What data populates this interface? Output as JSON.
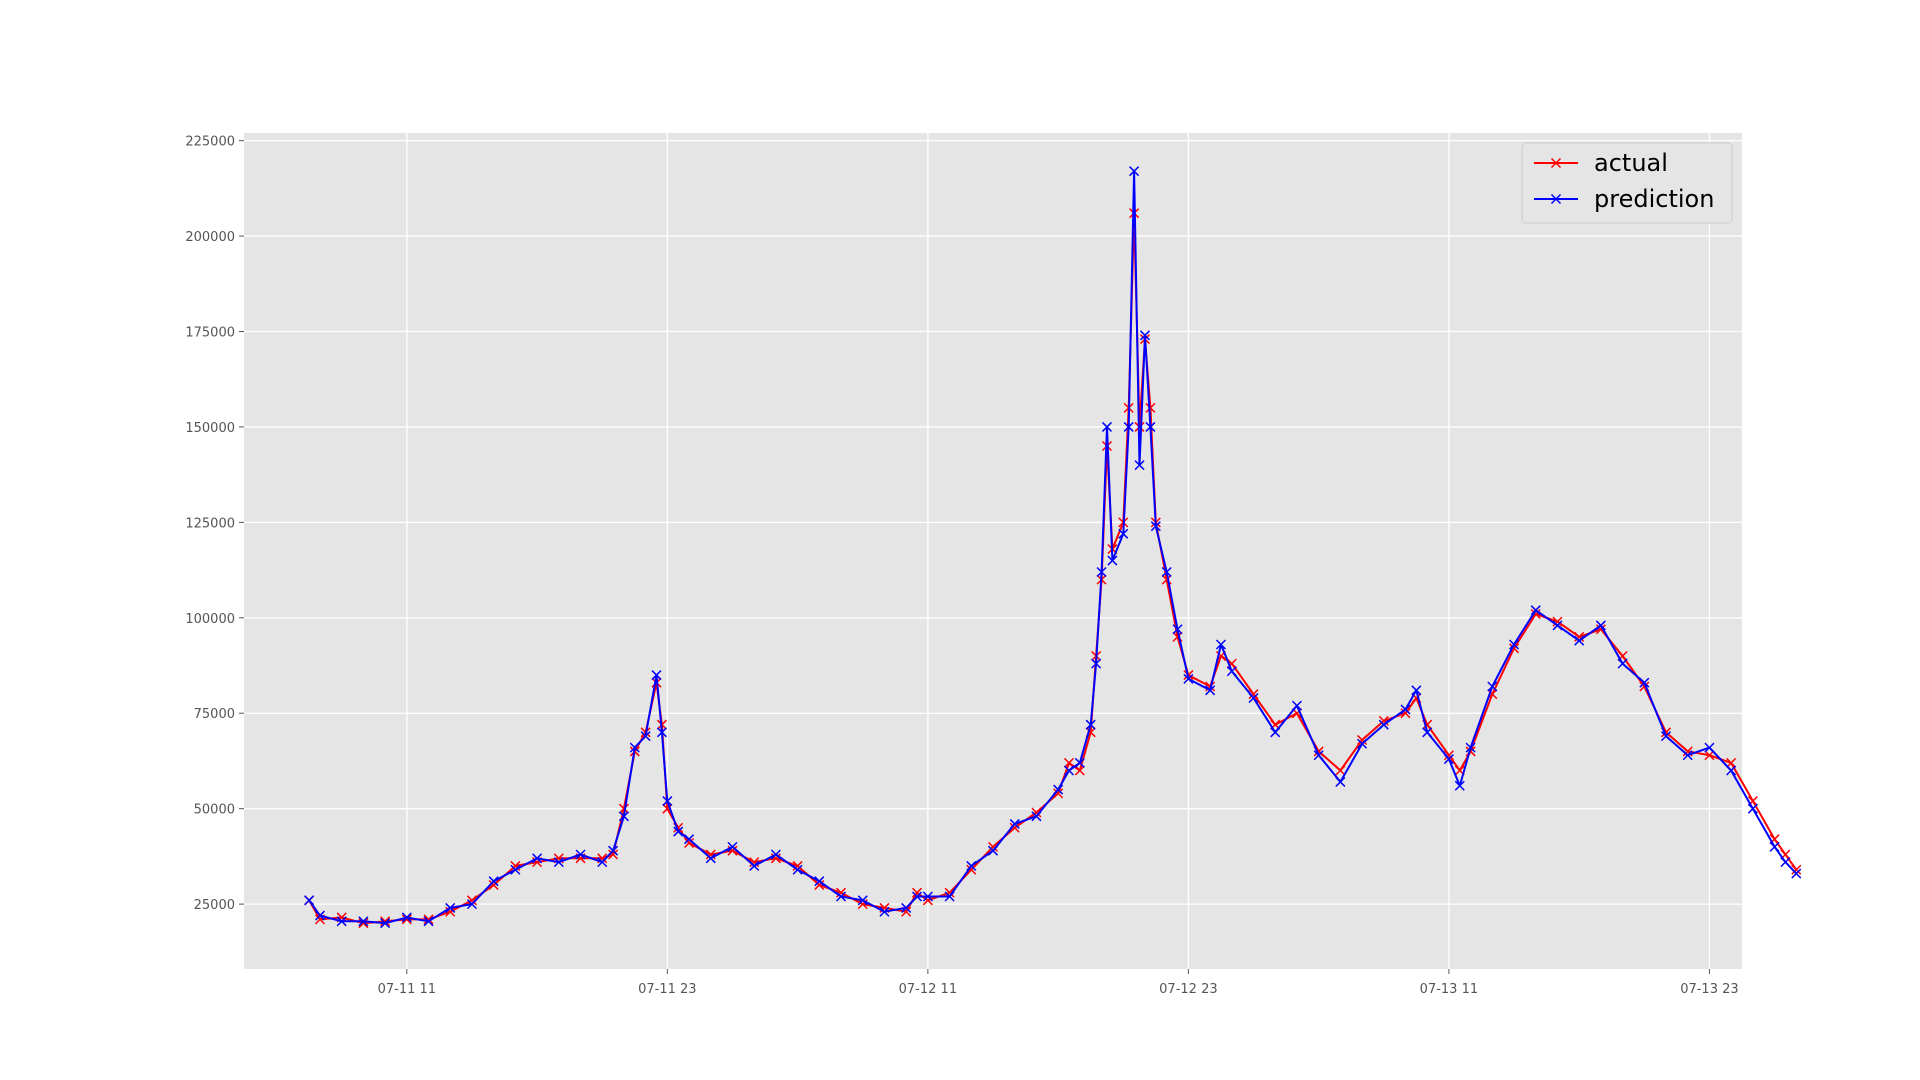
{
  "chart_data": {
    "type": "line",
    "x_unit": "hour",
    "x_start": "07-11 00:00",
    "title": "",
    "xlabel": "",
    "ylabel": "",
    "xlim": [
      "07-11 03:30",
      "07-14 00:30"
    ],
    "ylim": [
      8000,
      227000
    ],
    "x_ticks": [
      "07-11 11",
      "07-11 23",
      "07-12 11",
      "07-12 23",
      "07-13 11",
      "07-13 23"
    ],
    "y_ticks": [
      25000,
      50000,
      75000,
      100000,
      125000,
      150000,
      175000,
      200000,
      225000
    ],
    "grid": true,
    "legend_position": "top-right",
    "series": [
      {
        "name": "actual",
        "color": "#ff0000",
        "marker": "x",
        "points": [
          [
            "07-11 06:30",
            26000
          ],
          [
            "07-11 07:00",
            21000
          ],
          [
            "07-11 08:00",
            21500
          ],
          [
            "07-11 09:00",
            20000
          ],
          [
            "07-11 10:00",
            20500
          ],
          [
            "07-11 11:00",
            21000
          ],
          [
            "07-11 12:00",
            21000
          ],
          [
            "07-11 13:00",
            23000
          ],
          [
            "07-11 14:00",
            26000
          ],
          [
            "07-11 15:00",
            30000
          ],
          [
            "07-11 16:00",
            35000
          ],
          [
            "07-11 17:00",
            36000
          ],
          [
            "07-11 18:00",
            37000
          ],
          [
            "07-11 19:00",
            37000
          ],
          [
            "07-11 20:00",
            37000
          ],
          [
            "07-11 20:30",
            38000
          ],
          [
            "07-11 21:00",
            50000
          ],
          [
            "07-11 21:30",
            65000
          ],
          [
            "07-11 22:00",
            70000
          ],
          [
            "07-11 22:30",
            83000
          ],
          [
            "07-11 22:45",
            72000
          ],
          [
            "07-11 23:00",
            50000
          ],
          [
            "07-11 23:30",
            45000
          ],
          [
            "07-11 24:00",
            41000
          ],
          [
            "07-12 01:00",
            38000
          ],
          [
            "07-12 02:00",
            39000
          ],
          [
            "07-12 03:00",
            36000
          ],
          [
            "07-12 04:00",
            37000
          ],
          [
            "07-12 05:00",
            35000
          ],
          [
            "07-12 06:00",
            30000
          ],
          [
            "07-12 07:00",
            28000
          ],
          [
            "07-12 08:00",
            25000
          ],
          [
            "07-12 09:00",
            24000
          ],
          [
            "07-12 10:00",
            23000
          ],
          [
            "07-12 10:30",
            28000
          ],
          [
            "07-12 11:00",
            26000
          ],
          [
            "07-12 12:00",
            28000
          ],
          [
            "07-12 13:00",
            34000
          ],
          [
            "07-12 14:00",
            40000
          ],
          [
            "07-12 15:00",
            45000
          ],
          [
            "07-12 16:00",
            49000
          ],
          [
            "07-12 17:00",
            54000
          ],
          [
            "07-12 17:30",
            62000
          ],
          [
            "07-12 18:00",
            60000
          ],
          [
            "07-12 18:30",
            70000
          ],
          [
            "07-12 18:45",
            90000
          ],
          [
            "07-12 19:00",
            110000
          ],
          [
            "07-12 19:15",
            145000
          ],
          [
            "07-12 19:30",
            118000
          ],
          [
            "07-12 20:00",
            125000
          ],
          [
            "07-12 20:15",
            155000
          ],
          [
            "07-12 20:30",
            206000
          ],
          [
            "07-12 20:45",
            150000
          ],
          [
            "07-12 21:00",
            173000
          ],
          [
            "07-12 21:15",
            155000
          ],
          [
            "07-12 21:30",
            125000
          ],
          [
            "07-12 22:00",
            110000
          ],
          [
            "07-12 22:30",
            95000
          ],
          [
            "07-12 23:00",
            85000
          ],
          [
            "07-12 24:00",
            82000
          ],
          [
            "07-13 00:30",
            90000
          ],
          [
            "07-13 01:00",
            88000
          ],
          [
            "07-13 02:00",
            80000
          ],
          [
            "07-13 03:00",
            72000
          ],
          [
            "07-13 04:00",
            75000
          ],
          [
            "07-13 05:00",
            65000
          ],
          [
            "07-13 06:00",
            60000
          ],
          [
            "07-13 07:00",
            68000
          ],
          [
            "07-13 08:00",
            73000
          ],
          [
            "07-13 09:00",
            75000
          ],
          [
            "07-13 09:30",
            79000
          ],
          [
            "07-13 10:00",
            72000
          ],
          [
            "07-13 11:00",
            64000
          ],
          [
            "07-13 11:30",
            60000
          ],
          [
            "07-13 12:00",
            65000
          ],
          [
            "07-13 13:00",
            80000
          ],
          [
            "07-13 14:00",
            92000
          ],
          [
            "07-13 15:00",
            101000
          ],
          [
            "07-13 16:00",
            99000
          ],
          [
            "07-13 17:00",
            95000
          ],
          [
            "07-13 18:00",
            97000
          ],
          [
            "07-13 19:00",
            90000
          ],
          [
            "07-13 20:00",
            82000
          ],
          [
            "07-13 21:00",
            70000
          ],
          [
            "07-13 22:00",
            65000
          ],
          [
            "07-13 23:00",
            64000
          ],
          [
            "07-13 24:00",
            62000
          ],
          [
            "07-14 01:00",
            52000
          ],
          [
            "07-14 02:00",
            42000
          ],
          [
            "07-14 02:30",
            38000
          ],
          [
            "07-14 03:00",
            34000
          ]
        ]
      },
      {
        "name": "prediction",
        "color": "#0000ff",
        "marker": "x",
        "points": [
          [
            "07-11 06:30",
            26000
          ],
          [
            "07-11 07:00",
            22000
          ],
          [
            "07-11 08:00",
            20500
          ],
          [
            "07-11 09:00",
            20500
          ],
          [
            "07-11 10:00",
            20000
          ],
          [
            "07-11 11:00",
            21500
          ],
          [
            "07-11 12:00",
            20500
          ],
          [
            "07-11 13:00",
            24000
          ],
          [
            "07-11 14:00",
            25000
          ],
          [
            "07-11 15:00",
            31000
          ],
          [
            "07-11 16:00",
            34000
          ],
          [
            "07-11 17:00",
            37000
          ],
          [
            "07-11 18:00",
            36000
          ],
          [
            "07-11 19:00",
            38000
          ],
          [
            "07-11 20:00",
            36000
          ],
          [
            "07-11 20:30",
            39000
          ],
          [
            "07-11 21:00",
            48000
          ],
          [
            "07-11 21:30",
            66000
          ],
          [
            "07-11 22:00",
            69000
          ],
          [
            "07-11 22:30",
            85000
          ],
          [
            "07-11 22:45",
            70000
          ],
          [
            "07-11 23:00",
            52000
          ],
          [
            "07-11 23:30",
            44000
          ],
          [
            "07-11 24:00",
            42000
          ],
          [
            "07-12 01:00",
            37000
          ],
          [
            "07-12 02:00",
            40000
          ],
          [
            "07-12 03:00",
            35000
          ],
          [
            "07-12 04:00",
            38000
          ],
          [
            "07-12 05:00",
            34000
          ],
          [
            "07-12 06:00",
            31000
          ],
          [
            "07-12 07:00",
            27000
          ],
          [
            "07-12 08:00",
            26000
          ],
          [
            "07-12 09:00",
            23000
          ],
          [
            "07-12 10:00",
            24000
          ],
          [
            "07-12 10:30",
            27000
          ],
          [
            "07-12 11:00",
            27000
          ],
          [
            "07-12 12:00",
            27000
          ],
          [
            "07-12 13:00",
            35000
          ],
          [
            "07-12 14:00",
            39000
          ],
          [
            "07-12 15:00",
            46000
          ],
          [
            "07-12 16:00",
            48000
          ],
          [
            "07-12 17:00",
            55000
          ],
          [
            "07-12 17:30",
            60000
          ],
          [
            "07-12 18:00",
            62000
          ],
          [
            "07-12 18:30",
            72000
          ],
          [
            "07-12 18:45",
            88000
          ],
          [
            "07-12 19:00",
            112000
          ],
          [
            "07-12 19:15",
            150000
          ],
          [
            "07-12 19:30",
            115000
          ],
          [
            "07-12 20:00",
            122000
          ],
          [
            "07-12 20:15",
            150000
          ],
          [
            "07-12 20:30",
            217000
          ],
          [
            "07-12 20:45",
            140000
          ],
          [
            "07-12 21:00",
            174000
          ],
          [
            "07-12 21:15",
            150000
          ],
          [
            "07-12 21:30",
            124000
          ],
          [
            "07-12 22:00",
            112000
          ],
          [
            "07-12 22:30",
            97000
          ],
          [
            "07-12 23:00",
            84000
          ],
          [
            "07-12 24:00",
            81000
          ],
          [
            "07-13 00:30",
            93000
          ],
          [
            "07-13 01:00",
            86000
          ],
          [
            "07-13 02:00",
            79000
          ],
          [
            "07-13 03:00",
            70000
          ],
          [
            "07-13 04:00",
            77000
          ],
          [
            "07-13 05:00",
            64000
          ],
          [
            "07-13 06:00",
            57000
          ],
          [
            "07-13 07:00",
            67000
          ],
          [
            "07-13 08:00",
            72000
          ],
          [
            "07-13 09:00",
            76000
          ],
          [
            "07-13 09:30",
            81000
          ],
          [
            "07-13 10:00",
            70000
          ],
          [
            "07-13 11:00",
            63000
          ],
          [
            "07-13 11:30",
            56000
          ],
          [
            "07-13 12:00",
            66000
          ],
          [
            "07-13 13:00",
            82000
          ],
          [
            "07-13 14:00",
            93000
          ],
          [
            "07-13 15:00",
            102000
          ],
          [
            "07-13 16:00",
            98000
          ],
          [
            "07-13 17:00",
            94000
          ],
          [
            "07-13 18:00",
            98000
          ],
          [
            "07-13 19:00",
            88000
          ],
          [
            "07-13 20:00",
            83000
          ],
          [
            "07-13 21:00",
            69000
          ],
          [
            "07-13 22:00",
            64000
          ],
          [
            "07-13 23:00",
            66000
          ],
          [
            "07-13 24:00",
            60000
          ],
          [
            "07-14 01:00",
            50000
          ],
          [
            "07-14 02:00",
            40000
          ],
          [
            "07-14 02:30",
            36000
          ],
          [
            "07-14 03:00",
            33000
          ]
        ]
      }
    ]
  }
}
